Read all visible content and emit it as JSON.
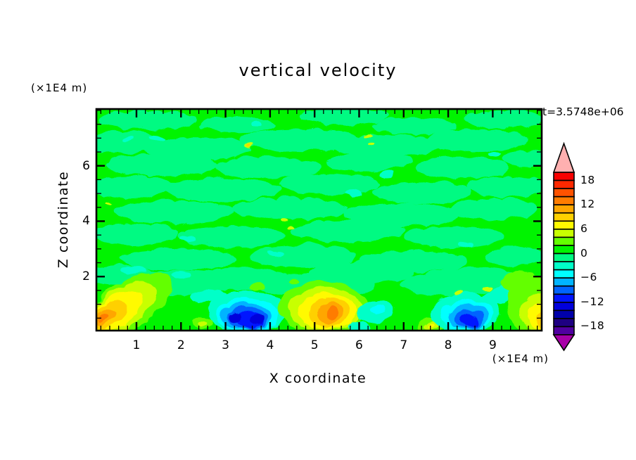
{
  "page": {
    "background": "#FFFFFF"
  },
  "chart_data": {
    "type": "filled_contour",
    "title": "vertical velocity",
    "timestamp": "t=3.5748e+06",
    "x_axis": {
      "label": "X coordinate",
      "units": "(×1E4 m)",
      "major_ticks": [
        1,
        2,
        3,
        4,
        5,
        6,
        7,
        8,
        9
      ],
      "minor_step": 0.2,
      "range": [
        0.1,
        10.1
      ]
    },
    "z_axis": {
      "label": "Z coordinate",
      "units": "(×1E4 m)",
      "major_ticks": [
        2,
        4,
        6
      ],
      "minor_step": 0.5,
      "range": [
        0.05,
        8.05
      ]
    },
    "colorbar": {
      "labels": [
        "18",
        "12",
        "6",
        "0",
        "−6",
        "−12",
        "−18"
      ],
      "levels_min": -20,
      "levels_max": 20,
      "level_step": 2,
      "band_colors_top_to_bottom": [
        "#F80000",
        "#FF2800",
        "#FF5200",
        "#FF7C00",
        "#FFA600",
        "#FFD000",
        "#FFFA00",
        "#C8FF00",
        "#64FF00",
        "#00F400",
        "#00FA82",
        "#00FFC8",
        "#00FFFF",
        "#00B4FF",
        "#0064FF",
        "#0014FF",
        "#0000DC",
        "#0000AA",
        "#1E0082",
        "#5000A0"
      ],
      "over_arrow_color": "#FFB0B0",
      "under_arrow_color": "#A800A8",
      "outline_color": "#000000"
    },
    "field": {
      "background_value": 1,
      "blobs": [
        {
          "v": -1,
          "x": 1.2,
          "z": 7.7,
          "rx": 1.1,
          "rz": 0.35
        },
        {
          "v": -1,
          "x": 3.2,
          "z": 7.55,
          "rx": 0.85,
          "rz": 0.3
        },
        {
          "v": -1,
          "x": 5.6,
          "z": 7.85,
          "rx": 1.0,
          "rz": 0.32
        },
        {
          "v": -1,
          "x": 7.2,
          "z": 7.5,
          "rx": 0.95,
          "rz": 0.3
        },
        {
          "v": -1,
          "x": 9.2,
          "z": 7.75,
          "rx": 0.85,
          "rz": 0.33
        },
        {
          "v": -1,
          "x": 0.6,
          "z": 6.9,
          "rx": 0.85,
          "rz": 0.4
        },
        {
          "v": -1,
          "x": 2.3,
          "z": 6.7,
          "rx": 1.2,
          "rz": 0.42
        },
        {
          "v": -1,
          "x": 4.6,
          "z": 7.0,
          "rx": 1.35,
          "rz": 0.4
        },
        {
          "v": -1,
          "x": 6.6,
          "z": 6.8,
          "rx": 1.2,
          "rz": 0.4
        },
        {
          "v": -1,
          "x": 8.6,
          "z": 7.0,
          "rx": 1.15,
          "rz": 0.4
        },
        {
          "v": -1,
          "x": 1.5,
          "z": 6.1,
          "rx": 1.25,
          "rz": 0.4
        },
        {
          "v": -1,
          "x": 3.9,
          "z": 6.0,
          "rx": 1.2,
          "rz": 0.38
        },
        {
          "v": -1,
          "x": 6.2,
          "z": 6.2,
          "rx": 1.0,
          "rz": 0.35
        },
        {
          "v": -1,
          "x": 8.3,
          "z": 6.0,
          "rx": 1.05,
          "rz": 0.4
        },
        {
          "v": -1,
          "x": 9.8,
          "z": 6.3,
          "rx": 0.6,
          "rz": 0.3
        },
        {
          "v": -1,
          "x": 0.8,
          "z": 5.3,
          "rx": 1.0,
          "rz": 0.4
        },
        {
          "v": -1,
          "x": 2.9,
          "z": 5.2,
          "rx": 1.3,
          "rz": 0.42
        },
        {
          "v": -1,
          "x": 5.3,
          "z": 5.4,
          "rx": 1.15,
          "rz": 0.4
        },
        {
          "v": -1,
          "x": 7.4,
          "z": 5.1,
          "rx": 1.1,
          "rz": 0.4
        },
        {
          "v": -1,
          "x": 9.3,
          "z": 5.3,
          "rx": 0.9,
          "rz": 0.38
        },
        {
          "v": -1,
          "x": 1.8,
          "z": 4.4,
          "rx": 1.35,
          "rz": 0.42
        },
        {
          "v": -1,
          "x": 4.4,
          "z": 4.5,
          "rx": 1.3,
          "rz": 0.4
        },
        {
          "v": -1,
          "x": 6.9,
          "z": 4.3,
          "rx": 1.3,
          "rz": 0.42
        },
        {
          "v": -1,
          "x": 9.0,
          "z": 4.5,
          "rx": 1.0,
          "rz": 0.4
        },
        {
          "v": -1,
          "x": 0.9,
          "z": 3.6,
          "rx": 1.0,
          "rz": 0.4
        },
        {
          "v": -1,
          "x": 3.1,
          "z": 3.5,
          "rx": 1.2,
          "rz": 0.4
        },
        {
          "v": -1,
          "x": 5.7,
          "z": 3.7,
          "rx": 1.3,
          "rz": 0.4
        },
        {
          "v": -1,
          "x": 8.1,
          "z": 3.5,
          "rx": 1.1,
          "rz": 0.4
        },
        {
          "v": -1,
          "x": 1.9,
          "z": 2.7,
          "rx": 1.3,
          "rz": 0.4
        },
        {
          "v": -1,
          "x": 4.7,
          "z": 2.8,
          "rx": 1.2,
          "rz": 0.4
        },
        {
          "v": -1,
          "x": 7.2,
          "z": 2.6,
          "rx": 1.2,
          "rz": 0.4
        },
        {
          "v": -1,
          "x": 9.5,
          "z": 2.8,
          "rx": 0.7,
          "rz": 0.35
        },
        {
          "v": -1,
          "x": 0.6,
          "z": 2.1,
          "rx": 0.85,
          "rz": 0.38
        },
        {
          "v": -1,
          "x": 3.3,
          "z": 2.0,
          "rx": 1.1,
          "rz": 0.4
        },
        {
          "v": -1,
          "x": 6.0,
          "z": 2.2,
          "rx": 1.2,
          "rz": 0.4
        },
        {
          "v": -1,
          "x": 8.6,
          "z": 2.0,
          "rx": 1.0,
          "rz": 0.4
        },
        {
          "v": -1,
          "x": 2.0,
          "z": 1.85,
          "rx": 1.2,
          "rz": 0.45
        },
        {
          "v": -1,
          "x": 5.0,
          "z": 1.75,
          "rx": 1.3,
          "rz": 0.45
        },
        {
          "v": -1,
          "x": 8.0,
          "z": 1.8,
          "rx": 1.1,
          "rz": 0.45
        },
        {
          "v": -3,
          "x": 1.4,
          "z": 7.05,
          "rx": 0.18,
          "rz": 0.1
        },
        {
          "v": -3,
          "x": 0.75,
          "z": 7.0,
          "rx": 0.13,
          "rz": 0.08
        },
        {
          "v": -3,
          "x": 3.65,
          "z": 7.6,
          "rx": 0.14,
          "rz": 0.09
        },
        {
          "v": -3,
          "x": 5.85,
          "z": 5.05,
          "rx": 0.2,
          "rz": 0.11
        },
        {
          "v": -3,
          "x": 6.55,
          "z": 5.75,
          "rx": 0.16,
          "rz": 0.1
        },
        {
          "v": -3,
          "x": 8.35,
          "z": 3.2,
          "rx": 0.18,
          "rz": 0.1
        },
        {
          "v": -3,
          "x": 2.1,
          "z": 3.4,
          "rx": 0.16,
          "rz": 0.09
        },
        {
          "v": -3,
          "x": 9.0,
          "z": 6.5,
          "rx": 0.14,
          "rz": 0.09
        },
        {
          "v": -3,
          "x": 4.1,
          "z": 2.9,
          "rx": 0.18,
          "rz": 0.1
        },
        {
          "v": -3,
          "x": 0.9,
          "z": 2.3,
          "rx": 0.3,
          "rz": 0.14
        },
        {
          "v": -3,
          "x": 1.95,
          "z": 2.15,
          "rx": 0.24,
          "rz": 0.12
        },
        {
          "v": 3,
          "x": 0.75,
          "z": 0.95,
          "rx": 1.15,
          "rz": 0.85,
          "rot": -35
        },
        {
          "v": 5,
          "x": 0.6,
          "z": 0.85,
          "rx": 0.92,
          "rz": 0.68,
          "rot": -35
        },
        {
          "v": 7,
          "x": 0.5,
          "z": 0.78,
          "rx": 0.7,
          "rz": 0.52,
          "rot": -35
        },
        {
          "v": 9,
          "x": 0.35,
          "z": 0.68,
          "rx": 0.45,
          "rz": 0.36,
          "rot": -33
        },
        {
          "v": 11,
          "x": 0.25,
          "z": 0.6,
          "rx": 0.26,
          "rz": 0.22,
          "rot": -30
        },
        {
          "v": 13,
          "x": 0.2,
          "z": 0.55,
          "rx": 0.12,
          "rz": 0.11,
          "rot": -30
        },
        {
          "v": -3,
          "x": 2.6,
          "z": 1.35,
          "rx": 0.45,
          "rz": 0.22
        },
        {
          "v": -3,
          "x": 3.45,
          "z": 0.8,
          "rx": 0.88,
          "rz": 0.78
        },
        {
          "v": -5,
          "x": 3.45,
          "z": 0.68,
          "rx": 0.7,
          "rz": 0.62
        },
        {
          "v": -7,
          "x": 3.43,
          "z": 0.62,
          "rx": 0.57,
          "rz": 0.5
        },
        {
          "v": -9,
          "x": 3.46,
          "z": 0.56,
          "rx": 0.46,
          "rz": 0.4
        },
        {
          "v": -11,
          "x": 3.5,
          "z": 0.52,
          "rx": 0.34,
          "rz": 0.3
        },
        {
          "v": -13,
          "x": 3.16,
          "z": 0.56,
          "rx": 0.13,
          "rz": 0.17
        },
        {
          "v": -13,
          "x": 3.66,
          "z": 0.55,
          "rx": 0.18,
          "rz": 0.2
        },
        {
          "v": 3,
          "x": 2.42,
          "z": 0.42,
          "rx": 0.24,
          "rz": 0.2
        },
        {
          "v": 5,
          "x": 2.42,
          "z": 0.4,
          "rx": 0.11,
          "rz": 0.09
        },
        {
          "v": 3,
          "x": 3.67,
          "z": 1.72,
          "rx": 0.15,
          "rz": 0.12
        },
        {
          "v": 3,
          "x": 4.5,
          "z": 1.9,
          "rx": 0.1,
          "rz": 0.08
        },
        {
          "v": 3,
          "x": 5.15,
          "z": 0.95,
          "rx": 1.02,
          "rz": 0.92
        },
        {
          "v": 5,
          "x": 5.2,
          "z": 0.88,
          "rx": 0.84,
          "rz": 0.78
        },
        {
          "v": 7,
          "x": 5.25,
          "z": 0.82,
          "rx": 0.66,
          "rz": 0.66
        },
        {
          "v": 9,
          "x": 5.3,
          "z": 0.78,
          "rx": 0.46,
          "rz": 0.54
        },
        {
          "v": 11,
          "x": 5.34,
          "z": 0.74,
          "rx": 0.29,
          "rz": 0.4
        },
        {
          "v": 13,
          "x": 5.37,
          "z": 0.7,
          "rx": 0.13,
          "rz": 0.26
        },
        {
          "v": -3,
          "x": 6.35,
          "z": 0.8,
          "rx": 0.42,
          "rz": 0.42
        },
        {
          "v": -5,
          "x": 6.4,
          "z": 0.85,
          "rx": 0.18,
          "rz": 0.2
        },
        {
          "v": -3,
          "x": 5.95,
          "z": 0.28,
          "rx": 0.25,
          "rz": 0.18
        },
        {
          "v": 3,
          "x": 7.6,
          "z": 0.3,
          "rx": 0.33,
          "rz": 0.3
        },
        {
          "v": 5,
          "x": 7.6,
          "z": 0.27,
          "rx": 0.2,
          "rz": 0.17
        },
        {
          "v": 7,
          "x": 7.58,
          "z": 0.25,
          "rx": 0.09,
          "rz": 0.08
        },
        {
          "v": -3,
          "x": 9.05,
          "z": 1.35,
          "rx": 0.5,
          "rz": 0.28,
          "rot": -20
        },
        {
          "v": -3,
          "x": 8.35,
          "z": 0.72,
          "rx": 0.78,
          "rz": 0.72
        },
        {
          "v": -5,
          "x": 8.4,
          "z": 0.64,
          "rx": 0.6,
          "rz": 0.56
        },
        {
          "v": -7,
          "x": 8.42,
          "z": 0.58,
          "rx": 0.47,
          "rz": 0.46
        },
        {
          "v": -9,
          "x": 8.43,
          "z": 0.52,
          "rx": 0.34,
          "rz": 0.34
        },
        {
          "v": -11,
          "x": 8.44,
          "z": 0.47,
          "rx": 0.21,
          "rz": 0.24
        },
        {
          "v": 5,
          "x": 8.85,
          "z": 1.65,
          "rx": 0.12,
          "rz": 0.08
        },
        {
          "v": 5,
          "x": 8.2,
          "z": 1.44,
          "rx": 0.1,
          "rz": 0.07
        },
        {
          "v": 3,
          "x": 9.55,
          "z": 1.85,
          "rx": 0.4,
          "rz": 0.45
        },
        {
          "v": 3,
          "x": 9.9,
          "z": 1.0,
          "rx": 0.62,
          "rz": 1.05
        },
        {
          "v": 5,
          "x": 10.0,
          "z": 0.78,
          "rx": 0.42,
          "rz": 0.68
        },
        {
          "v": 7,
          "x": 10.05,
          "z": 0.62,
          "rx": 0.28,
          "rz": 0.46
        },
        {
          "v": 9,
          "x": 10.08,
          "z": 0.5,
          "rx": 0.15,
          "rz": 0.3
        },
        {
          "v": 5,
          "x": 6.15,
          "z": 7.1,
          "rx": 0.1,
          "rz": 0.07
        },
        {
          "v": 5,
          "x": 6.22,
          "z": 6.85,
          "rx": 0.07,
          "rz": 0.05
        },
        {
          "v": 5,
          "x": 3.48,
          "z": 6.82,
          "rx": 0.1,
          "rz": 0.07
        },
        {
          "v": 9,
          "x": 3.48,
          "z": 6.82,
          "rx": 0.05,
          "rz": 0.035
        },
        {
          "v": 5,
          "x": 4.3,
          "z": 4.05,
          "rx": 0.09,
          "rz": 0.06
        },
        {
          "v": 5,
          "x": 4.42,
          "z": 3.85,
          "rx": 0.07,
          "rz": 0.05
        },
        {
          "v": 5,
          "x": 0.35,
          "z": 4.7,
          "rx": 0.08,
          "rz": 0.05
        }
      ]
    }
  }
}
